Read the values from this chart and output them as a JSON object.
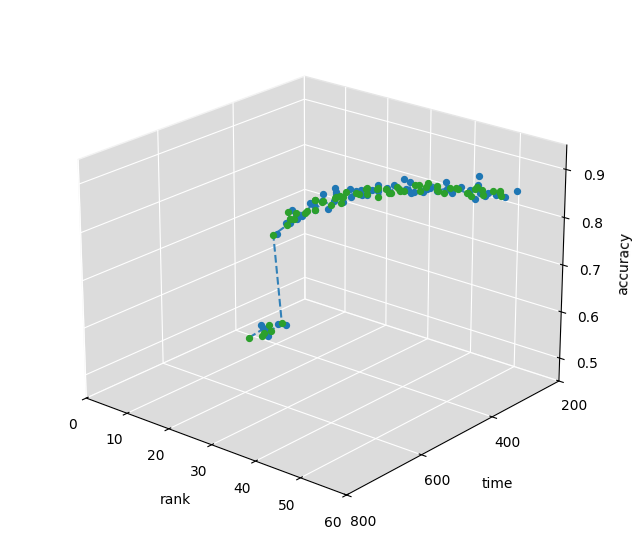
{
  "xlabel": "rank",
  "ylabel": "time",
  "zlabel": "accuracy",
  "xlim": [
    0,
    60
  ],
  "ylim": [
    200,
    800
  ],
  "zlim": [
    0.45,
    0.95
  ],
  "xticks": [
    0,
    10,
    20,
    30,
    40,
    50,
    60
  ],
  "yticks": [
    200,
    400,
    600,
    800
  ],
  "zticks": [
    0.5,
    0.6,
    0.7,
    0.8,
    0.9
  ],
  "pane_color": "#dcdcdc",
  "line_color_dashed": "#1f77b4",
  "dot_color_green": "#2ca02c",
  "dot_color_blue": "#1f77b4",
  "figsize": [
    6.34,
    5.6
  ],
  "dpi": 100,
  "elev": 22,
  "azim": -50
}
